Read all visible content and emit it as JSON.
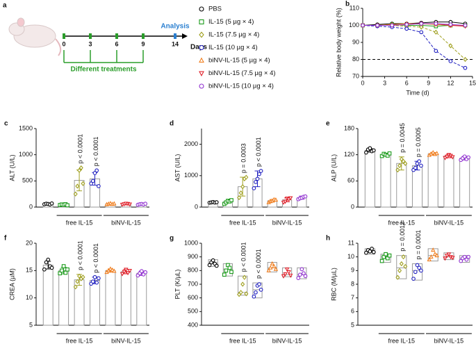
{
  "panel_a": {
    "letter": "a",
    "analysis": "Analysis",
    "days_label": "Days",
    "treatments": "Different treatments",
    "day_labels": [
      "0",
      "3",
      "6",
      "9",
      "14"
    ]
  },
  "chart_data": [
    {
      "type": "line",
      "panel": "b",
      "xlabel": "Time (d)",
      "ylabel": "Relative body weight (%)",
      "x": [
        0,
        2,
        4,
        6,
        8,
        10,
        12,
        14
      ],
      "xlim": [
        0,
        15
      ],
      "xticks": [
        0,
        3,
        6,
        9,
        12,
        15
      ],
      "ylim": [
        70,
        110
      ],
      "yticks": [
        70,
        80,
        90,
        100,
        110
      ],
      "reference_line": 80,
      "series": [
        {
          "name": "PBS",
          "color": "#000000",
          "marker": "circle",
          "line_style": "solid",
          "values": [
            100,
            100.5,
            101,
            101,
            101.5,
            102,
            102,
            101
          ]
        },
        {
          "name": "IL-15 (5 µg × 4)",
          "color": "#1a9a1a",
          "marker": "square",
          "line_style": "solid",
          "values": [
            100,
            100,
            100.5,
            100,
            100,
            99.5,
            100,
            100
          ]
        },
        {
          "name": "IL-15 (7.5 µg × 4)",
          "color": "#a0a020",
          "marker": "diamond",
          "line_style": "dashed",
          "values": [
            100,
            100,
            100,
            99.5,
            99,
            96,
            88,
            80
          ]
        },
        {
          "name": "IL-15 (10 µg × 4)",
          "color": "#2020c0",
          "marker": "circle",
          "line_style": "dashed",
          "values": [
            100,
            99.5,
            99,
            98,
            96,
            85,
            79,
            75
          ]
        },
        {
          "name": "biNV-IL-15 (5 µg × 4)",
          "color": "#f07f20",
          "marker": "triangle-up",
          "line_style": "solid",
          "values": [
            100,
            100,
            100.5,
            101,
            101,
            100.5,
            100,
            100
          ]
        },
        {
          "name": "biNV-IL-15 (7.5 µg × 4)",
          "color": "#e0202a",
          "marker": "triangle-down",
          "line_style": "solid",
          "values": [
            100,
            100,
            100,
            100.5,
            101,
            101,
            100,
            99.5
          ]
        },
        {
          "name": "biNV-IL-15 (10 µg × 4)",
          "color": "#9030d0",
          "marker": "circle",
          "line_style": "solid",
          "values": [
            100,
            100,
            100,
            100.5,
            101,
            101,
            100.5,
            100
          ]
        }
      ]
    },
    {
      "type": "bar",
      "panel": "c",
      "ylabel": "ALT (U/L)",
      "ylim": [
        0,
        1500
      ],
      "yticks": [
        0,
        500,
        1000,
        1500
      ],
      "categories": [
        null,
        null,
        null,
        null,
        null,
        null,
        null
      ],
      "group_labels": [
        "free IL-15",
        "biNV-IL-15"
      ],
      "values": [
        60,
        45,
        510,
        540,
        60,
        60,
        55
      ],
      "errors": [
        8,
        7,
        200,
        120,
        8,
        8,
        7
      ],
      "p_values": [
        null,
        null,
        "p < 0.0001",
        "p < 0.0001",
        null,
        null,
        null
      ],
      "points": [
        [
          55,
          65,
          60,
          50,
          70
        ],
        [
          40,
          50,
          45,
          55,
          35
        ],
        [
          250,
          400,
          700,
          750,
          450
        ],
        [
          450,
          500,
          650,
          700,
          400
        ],
        [
          50,
          60,
          70,
          55,
          65
        ],
        [
          50,
          60,
          70,
          65,
          55
        ],
        [
          45,
          55,
          60,
          50,
          65
        ]
      ]
    },
    {
      "type": "bar",
      "panel": "d",
      "ylabel": "AST (U/L)",
      "ylim": [
        0,
        2500
      ],
      "yticks": [
        0,
        1000,
        2000
      ],
      "categories": [
        null,
        null,
        null,
        null,
        null,
        null,
        null
      ],
      "group_labels": [
        "free IL-15",
        "biNV-IL-15"
      ],
      "values": [
        150,
        170,
        650,
        900,
        200,
        230,
        300
      ],
      "errors": [
        15,
        30,
        300,
        250,
        40,
        60,
        50
      ],
      "p_values": [
        null,
        null,
        "p = 0.0003",
        "p < 0.0001",
        null,
        null,
        null
      ],
      "points": [
        [
          140,
          150,
          160,
          145,
          155
        ],
        [
          100,
          150,
          200,
          180,
          220
        ],
        [
          300,
          450,
          650,
          900,
          950
        ],
        [
          600,
          800,
          900,
          1050,
          1150
        ],
        [
          150,
          180,
          200,
          240,
          230
        ],
        [
          150,
          180,
          280,
          250,
          290
        ],
        [
          250,
          280,
          300,
          330,
          340
        ]
      ]
    },
    {
      "type": "bar",
      "panel": "e",
      "ylabel": "ALP (U/L)",
      "ylim": [
        0,
        180
      ],
      "yticks": [
        0,
        60,
        120,
        180
      ],
      "categories": [
        null,
        null,
        null,
        null,
        null,
        null,
        null
      ],
      "group_labels": [
        "free IL-15",
        "biNV-IL-15"
      ],
      "values": [
        130,
        120,
        100,
        95,
        122,
        117,
        112
      ],
      "errors": [
        4,
        3,
        15,
        10,
        3,
        4,
        4
      ],
      "p_values": [
        null,
        null,
        "p = 0.0045",
        "p = 0.0005",
        null,
        null,
        null
      ],
      "points": [
        [
          125,
          132,
          135,
          128,
          130
        ],
        [
          117,
          122,
          120,
          118,
          123
        ],
        [
          85,
          95,
          110,
          105,
          100
        ],
        [
          85,
          90,
          100,
          105,
          95
        ],
        [
          119,
          122,
          125,
          121,
          123
        ],
        [
          113,
          116,
          120,
          118,
          115
        ],
        [
          108,
          112,
          116,
          110,
          114
        ]
      ]
    },
    {
      "type": "bar",
      "panel": "f",
      "ylabel": "CREA (µM)",
      "ylim": [
        5,
        20
      ],
      "yticks": [
        5,
        10,
        15,
        20
      ],
      "categories": [
        null,
        null,
        null,
        null,
        null,
        null,
        null
      ],
      "group_labels": [
        "free IL-15",
        "biNV-IL-15"
      ],
      "values": [
        16,
        15,
        13.3,
        13.2,
        15,
        14.8,
        14.5
      ],
      "errors": [
        0.7,
        0.6,
        1,
        0.6,
        0.3,
        0.4,
        0.4
      ],
      "p_values": [
        null,
        null,
        "p < 0.0001",
        "p < 0.0001",
        null,
        null,
        null
      ],
      "points": [
        [
          15.2,
          16.5,
          17,
          15.8,
          15.5
        ],
        [
          14.5,
          15,
          15.8,
          14.6,
          15.2
        ],
        [
          12,
          13,
          14,
          13.5,
          13.8
        ],
        [
          12.6,
          13,
          13.8,
          12.8,
          13.6
        ],
        [
          14.7,
          15,
          15.3,
          15.1,
          14.9
        ],
        [
          14.4,
          14.8,
          15.2,
          14.6,
          15
        ],
        [
          14.1,
          14.5,
          14.9,
          14.3,
          14.7
        ]
      ]
    },
    {
      "type": "box",
      "panel": "g",
      "ylabel": "PLT (K/µL)",
      "ylim": [
        400,
        1000
      ],
      "yticks": [
        400,
        500,
        600,
        700,
        800,
        900,
        1000
      ],
      "categories": [
        null,
        null,
        null,
        null,
        null,
        null,
        null
      ],
      "group_labels": [
        "free IL-15",
        "biNV-IL-15"
      ],
      "values": [
        855,
        810,
        640,
        660,
        820,
        770,
        770
      ],
      "lows": [
        830,
        760,
        620,
        600,
        790,
        755,
        740
      ],
      "highs": [
        880,
        850,
        760,
        710,
        860,
        820,
        820
      ],
      "p_values": [
        null,
        null,
        "p < 0.0001",
        "p < 0.0001",
        null,
        null,
        null
      ],
      "points": [
        [
          840,
          860,
          875,
          850,
          835
        ],
        [
          770,
          800,
          840,
          820,
          790
        ],
        [
          625,
          640,
          700,
          750,
          630
        ],
        [
          610,
          640,
          690,
          700,
          660
        ],
        [
          800,
          820,
          850,
          830,
          810
        ],
        [
          760,
          775,
          810,
          790,
          765
        ],
        [
          745,
          770,
          810,
          780,
          760
        ]
      ]
    },
    {
      "type": "box",
      "panel": "h",
      "ylabel": "RBC (M/µL)",
      "ylim": [
        5,
        11
      ],
      "yticks": [
        5,
        6,
        7,
        8,
        9,
        10,
        11
      ],
      "categories": [
        null,
        null,
        null,
        null,
        null,
        null,
        null
      ],
      "group_labels": [
        "free IL-15",
        "biNV-IL-15"
      ],
      "values": [
        10.4,
        10,
        9.2,
        9,
        10.1,
        10,
        9.9
      ],
      "lows": [
        10.2,
        9.6,
        8.4,
        8.3,
        9.7,
        9.8,
        9.6
      ],
      "highs": [
        10.6,
        10.2,
        10.1,
        9.5,
        10.6,
        10.3,
        10.1
      ],
      "p_values": [
        null,
        null,
        "p = 0.0012",
        "p = 0.0001",
        null,
        null,
        null
      ],
      "points": [
        [
          10.3,
          10.5,
          10.4,
          10.6,
          10.35
        ],
        [
          9.7,
          10,
          10.2,
          9.9,
          10.1
        ],
        [
          8.5,
          9,
          9.5,
          10,
          9.3
        ],
        [
          8.4,
          8.9,
          9.4,
          9.2,
          9
        ],
        [
          9.8,
          10,
          10.5,
          10.2,
          10.1
        ],
        [
          9.9,
          10.1,
          10.2,
          10,
          9.95
        ],
        [
          9.7,
          9.9,
          10,
          9.8,
          10
        ]
      ]
    }
  ]
}
